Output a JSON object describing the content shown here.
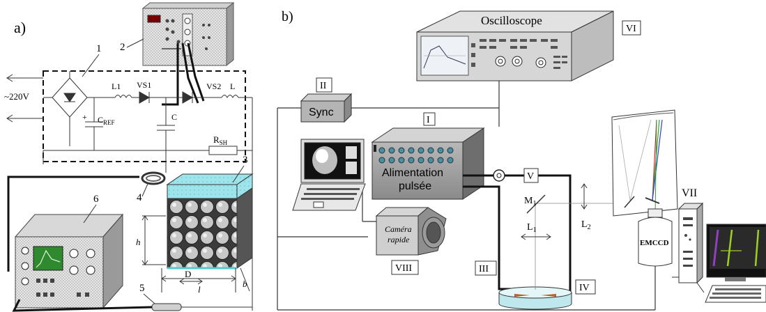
{
  "panel_a": {
    "label": "a)",
    "mains_label": "~220V",
    "components": {
      "rectifier": "1",
      "control_unit": "2",
      "load_box": "3",
      "coil": "4",
      "probe": "5",
      "oscilloscope": "6"
    },
    "circuit_labels": {
      "l1": "L1",
      "vs1": "VS1",
      "vs2": "VS2",
      "l": "L",
      "c_ref_c": "C",
      "c_ref_sub": "REF",
      "c": "C",
      "rsh_r": "R",
      "rsh_sub": "SH",
      "plus": "+"
    },
    "dimensions": {
      "h": "h",
      "d": "D",
      "l": "l",
      "b": "b"
    }
  },
  "panel_b": {
    "label": "b)",
    "oscilloscope_title": "Oscilloscope",
    "sync_label": "Sync",
    "power_supply_label_line1": "Alimentation",
    "power_supply_label_line2": "pulsée",
    "camera_label_line1": "Caméra",
    "camera_label_line2": "rapide",
    "emccd_label": "EMCCD",
    "roman": {
      "i": "I",
      "ii": "II",
      "iii": "III",
      "iv": "IV",
      "v": "V",
      "vi": "VI",
      "vii": "VII",
      "viii": "VIII"
    },
    "optics": {
      "m1_main": "M",
      "m1_sub": "1",
      "l1_main": "L",
      "l1_sub": "1",
      "l2_main": "L",
      "l2_sub": "2"
    }
  }
}
